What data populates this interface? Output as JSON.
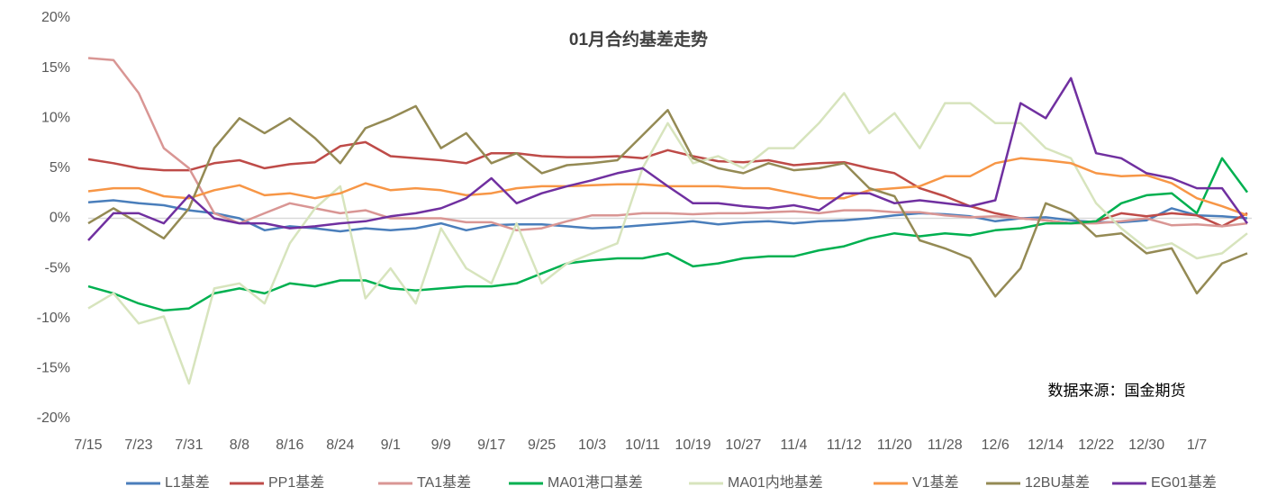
{
  "chart_data": {
    "type": "line",
    "title": "01月合约基差走势",
    "annotation": "数据来源：国金期货",
    "categories": [
      "7/15",
      null,
      "7/23",
      null,
      "7/31",
      null,
      "8/8",
      null,
      "8/16",
      null,
      "8/24",
      null,
      "9/1",
      null,
      "9/9",
      null,
      "9/17",
      null,
      "9/25",
      null,
      "10/3",
      null,
      "10/11",
      null,
      "10/19",
      null,
      "10/27",
      null,
      "11/4",
      null,
      "11/12",
      null,
      "11/20",
      null,
      "11/28",
      null,
      "12/6",
      null,
      "12/14",
      null,
      "12/22",
      null,
      "12/30",
      null,
      "1/7",
      null,
      null
    ],
    "ylim": [
      -20,
      20
    ],
    "yticks": [
      {
        "value": -20,
        "label": "-20%"
      },
      {
        "value": -15,
        "label": "-15%"
      },
      {
        "value": -10,
        "label": "-10%"
      },
      {
        "value": -5,
        "label": "-5%"
      },
      {
        "value": 0,
        "label": "0%"
      },
      {
        "value": 5,
        "label": "5%"
      },
      {
        "value": 10,
        "label": "10%"
      },
      {
        "value": 15,
        "label": "15%"
      },
      {
        "value": 20,
        "label": "20%"
      }
    ],
    "grid": false,
    "legend": "bottom",
    "series": [
      {
        "name": "L1基差",
        "color": "#4a7ebb",
        "values": [
          1.6,
          1.8,
          1.5,
          1.3,
          0.8,
          0.5,
          0,
          -1.2,
          -0.8,
          -1.0,
          -1.3,
          -1.0,
          -1.2,
          -1.0,
          -0.5,
          -1.2,
          -0.7,
          -0.6,
          -0.6,
          -0.8,
          -1.0,
          -0.9,
          -0.7,
          -0.5,
          -0.3,
          -0.6,
          -0.4,
          -0.3,
          -0.5,
          -0.3,
          -0.2,
          0,
          0.3,
          0.5,
          0.4,
          0.2,
          -0.3,
          0,
          0.1,
          -0.2,
          -0.4,
          -0.4,
          -0.2,
          1.0,
          0.3,
          0.2,
          0
        ]
      },
      {
        "name": "PP1基差",
        "color": "#be4b48",
        "values": [
          5.9,
          5.5,
          5.0,
          4.8,
          4.8,
          5.5,
          5.8,
          5.0,
          5.4,
          5.6,
          7.2,
          7.6,
          6.2,
          6.0,
          5.8,
          5.5,
          6.5,
          6.5,
          6.2,
          6.1,
          6.1,
          6.2,
          6.0,
          6.8,
          6.2,
          5.7,
          5.6,
          5.8,
          5.3,
          5.5,
          5.6,
          5.0,
          4.5,
          3.0,
          2.2,
          1.2,
          0.5,
          0.0,
          -0.2,
          -0.5,
          -0.3,
          0.5,
          0.2,
          0.5,
          0.3,
          -0.8,
          0.5
        ]
      },
      {
        "name": "TA1基差",
        "color": "#d99694",
        "values": [
          16,
          15.8,
          12.5,
          7,
          5,
          0.5,
          -0.5,
          0.5,
          1.5,
          1.0,
          0.5,
          0.8,
          0,
          0,
          0,
          -0.4,
          -0.4,
          -1.2,
          -1.0,
          -0.3,
          0.3,
          0.3,
          0.5,
          0.5,
          0.4,
          0.5,
          0.5,
          0.6,
          0.7,
          0.5,
          0.8,
          0.8,
          0.6,
          0.6,
          0.3,
          0.1,
          0.2,
          0,
          -0.2,
          -0.5,
          -0.5,
          -0.3,
          0,
          -0.7,
          -0.6,
          -0.8,
          -0.5
        ]
      },
      {
        "name": "MA01港口基差",
        "color": "#00b050",
        "values": [
          -6.8,
          -7.5,
          -8.5,
          -9.2,
          -9.0,
          -7.5,
          -7.0,
          -7.5,
          -6.5,
          -6.8,
          -6.2,
          -6.2,
          -7.0,
          -7.2,
          -7.0,
          -6.8,
          -6.8,
          -6.5,
          -5.5,
          -4.5,
          -4.2,
          -4.0,
          -4.0,
          -3.5,
          -4.8,
          -4.5,
          -4.0,
          -3.8,
          -3.8,
          -3.2,
          -2.8,
          -2.0,
          -1.5,
          -1.8,
          -1.5,
          -1.7,
          -1.2,
          -1.0,
          -0.5,
          -0.5,
          -0.3,
          1.5,
          2.3,
          2.5,
          0.5,
          6.0,
          2.6
        ]
      },
      {
        "name": "MA01内地基差",
        "color": "#d7e4bd",
        "values": [
          -9,
          -7.5,
          -10.5,
          -9.8,
          -16.5,
          -7,
          -6.5,
          -8.5,
          -2.5,
          1.0,
          3.2,
          -8.0,
          -5,
          -8.5,
          -1.0,
          -5.0,
          -6.5,
          -0.5,
          -6.5,
          -4.5,
          -3.5,
          -2.5,
          5.0,
          9.5,
          5.5,
          6.2,
          5.0,
          7.0,
          7.0,
          9.5,
          12.5,
          8.5,
          10.5,
          7.0,
          11.5,
          11.5,
          9.5,
          9.5,
          7.0,
          6.0,
          1.5,
          -1.0,
          -3.0,
          -2.5,
          -4.0,
          -3.5,
          -1.5
        ]
      },
      {
        "name": "V1基差",
        "color": "#f79646",
        "values": [
          2.7,
          3.0,
          3.0,
          2.2,
          2.0,
          2.8,
          3.3,
          2.3,
          2.5,
          2.0,
          2.5,
          3.5,
          2.8,
          3.0,
          2.8,
          2.3,
          2.5,
          3.0,
          3.2,
          3.2,
          3.3,
          3.4,
          3.4,
          3.2,
          3.2,
          3.2,
          3.0,
          3.0,
          2.5,
          2.0,
          2.0,
          2.8,
          3.0,
          3.2,
          4.2,
          4.2,
          5.5,
          6.0,
          5.8,
          5.5,
          4.5,
          4.2,
          4.3,
          3.5,
          2.0,
          1.2,
          0.3
        ]
      },
      {
        "name": "12BU基差",
        "color": "#948a54",
        "values": [
          -0.5,
          1.0,
          -0.5,
          -2.0,
          1.0,
          7.0,
          10.0,
          8.5,
          10.0,
          8.0,
          5.5,
          9.0,
          10.0,
          11.2,
          7.0,
          8.5,
          5.5,
          6.5,
          4.5,
          5.3,
          5.5,
          5.8,
          8.3,
          10.8,
          6.0,
          5.0,
          4.5,
          5.5,
          4.8,
          5.0,
          5.5,
          3.0,
          2.2,
          -2.2,
          -3.0,
          -4.0,
          -7.8,
          -5.0,
          1.5,
          0.5,
          -1.8,
          -1.5,
          -3.5,
          -3.0,
          -7.5,
          -4.5,
          -3.5
        ]
      },
      {
        "name": "EG01基差",
        "color": "#7030a0",
        "values": [
          -2.2,
          0.5,
          0.5,
          -0.5,
          2.3,
          0.0,
          -0.5,
          -0.5,
          -1.0,
          -0.8,
          -0.5,
          -0.3,
          0.2,
          0.5,
          1.0,
          2.0,
          4.0,
          1.5,
          2.5,
          3.2,
          3.8,
          4.5,
          5.0,
          3.2,
          1.5,
          1.5,
          1.2,
          1.0,
          1.3,
          0.8,
          2.5,
          2.5,
          1.5,
          1.8,
          1.5,
          1.2,
          1.8,
          11.5,
          10.0,
          14.0,
          6.5,
          6.0,
          4.5,
          4.0,
          3.0,
          3.0,
          -0.5
        ]
      }
    ]
  }
}
